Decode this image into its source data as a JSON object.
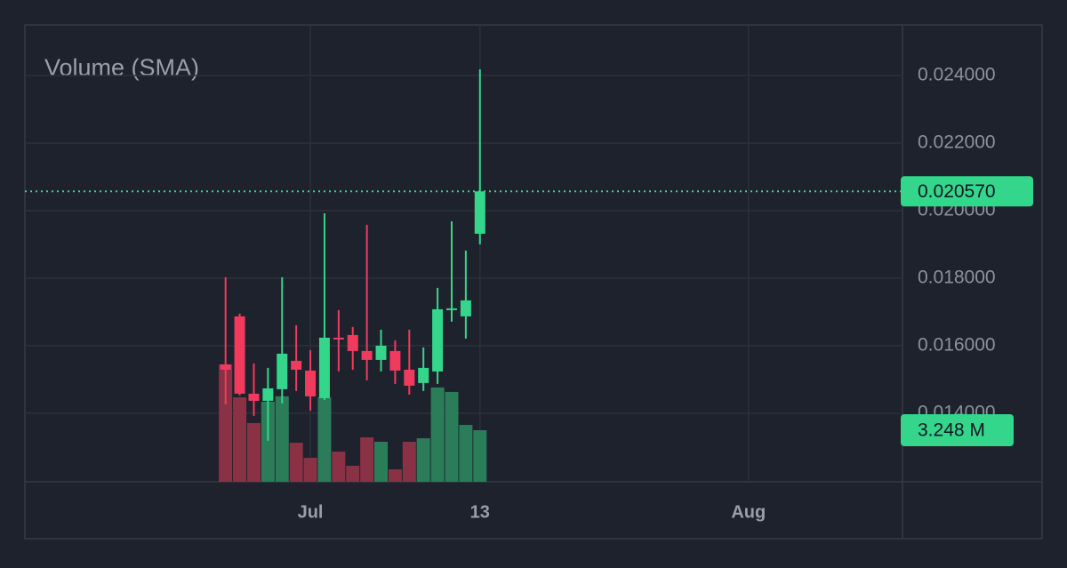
{
  "chart_data": {
    "type": "candlestick",
    "title": "Volume (SMA)",
    "x": [
      -6,
      -5,
      -4,
      -3,
      -2,
      -1,
      0,
      1,
      2,
      3,
      4,
      5,
      6,
      7,
      8,
      9,
      10,
      11,
      12
    ],
    "xlim": [
      -20.2,
      41.9
    ],
    "xticks": [
      {
        "value": 0,
        "label": "Jul"
      },
      {
        "value": 12,
        "label": "13"
      },
      {
        "value": 31,
        "label": "Aug"
      }
    ],
    "ylim": [
      0.01197,
      0.0255
    ],
    "yticks": [
      {
        "value": 0.014,
        "label": "0.014000"
      },
      {
        "value": 0.016,
        "label": "0.016000"
      },
      {
        "value": 0.018,
        "label": "0.018000"
      },
      {
        "value": 0.02,
        "label": "0.020000"
      },
      {
        "value": 0.022,
        "label": "0.022000"
      },
      {
        "value": 0.024,
        "label": "0.024000"
      }
    ],
    "grid": true,
    "ohlc": {
      "open": [
        0.015447,
        0.016868,
        0.014579,
        0.014368,
        0.014711,
        0.015553,
        0.015263,
        0.014447,
        0.016237,
        0.016316,
        0.015842,
        0.015579,
        0.015842,
        0.015289,
        0.014895,
        0.015237,
        0.017053,
        0.016868,
        0.019316
      ],
      "high": [
        0.018026,
        0.016947,
        0.015474,
        0.015342,
        0.018026,
        0.016605,
        0.015868,
        0.019921,
        0.017053,
        0.016553,
        0.019579,
        0.016474,
        0.016158,
        0.016474,
        0.015947,
        0.017711,
        0.019684,
        0.018816,
        0.024184
      ],
      "low": [
        0.014263,
        0.014526,
        0.013921,
        0.013184,
        0.014289,
        0.014658,
        0.014079,
        0.014395,
        0.015237,
        0.015289,
        0.014974,
        0.015237,
        0.014868,
        0.014553,
        0.014658,
        0.014868,
        0.016711,
        0.016211,
        0.019
      ],
      "close": [
        0.015289,
        0.014579,
        0.014368,
        0.014737,
        0.015763,
        0.015289,
        0.0145,
        0.016237,
        0.016184,
        0.015842,
        0.015579,
        0.016,
        0.015263,
        0.014816,
        0.015342,
        0.017079,
        0.017105,
        0.017342,
        0.02057
      ],
      "up_color": "#34d68c",
      "down_color": "#f23a5e",
      "last_label": "0.020570"
    },
    "volume": {
      "values": [
        7.39,
        5.32,
        3.7,
        5.04,
        5.38,
        2.46,
        1.51,
        5.32,
        1.9,
        1.01,
        2.8,
        2.52,
        0.78,
        2.52,
        2.74,
        5.94,
        5.66,
        3.58,
        3.248
      ],
      "y2lim": [
        0,
        28.78
      ],
      "up_color": "#2b7d5a",
      "down_color": "#8a3146",
      "last_label": "3.248 M"
    }
  }
}
